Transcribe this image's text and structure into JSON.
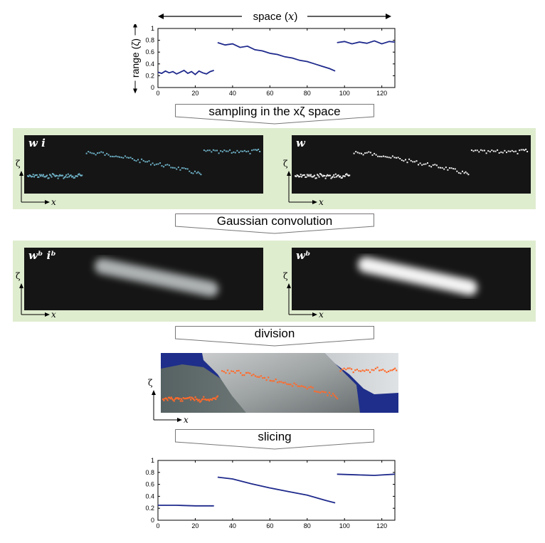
{
  "header": {
    "space_label": "space (",
    "space_var": "x",
    "space_close": ")"
  },
  "top_plot": {
    "ylabel": "range (ζ)",
    "xticks": [
      "0",
      "20",
      "40",
      "60",
      "80",
      "100",
      "120"
    ],
    "yticks": [
      "0",
      "0.2",
      "0.4",
      "0.6",
      "0.8",
      "1"
    ]
  },
  "steps": {
    "sampling": "sampling in the xζ space",
    "gaussian": "Gaussian convolution",
    "division": "division",
    "slicing": "slicing"
  },
  "panels": {
    "wi": "w i",
    "w": "w",
    "wbib": "wᵇ iᵇ",
    "wb": "wᵇ"
  },
  "axis_icon": {
    "y": "ζ",
    "x": "x"
  },
  "bottom_plot": {
    "xticks": [
      "0",
      "20",
      "40",
      "60",
      "80",
      "100",
      "120"
    ],
    "yticks": [
      "0",
      "0.2",
      "0.4",
      "0.6",
      "0.8",
      "1"
    ]
  },
  "colors": {
    "band": "#dfedcf",
    "line": "#1f2a8c",
    "orange": "#ff6a2a",
    "dark_blue": "#1e2e8a"
  },
  "chart_data": [
    {
      "type": "line",
      "series": [
        {
          "x": [
            0,
            2,
            4,
            6,
            8,
            10,
            12,
            14,
            16,
            18,
            20,
            22,
            24,
            26,
            28,
            30
          ],
          "values": [
            0.26,
            0.24,
            0.28,
            0.25,
            0.27,
            0.23,
            0.26,
            0.29,
            0.24,
            0.27,
            0.22,
            0.28,
            0.25,
            0.23,
            0.27,
            0.29
          ]
        },
        {
          "x": [
            32,
            36,
            40,
            44,
            48,
            52,
            56,
            60,
            64,
            68,
            72,
            76,
            80,
            84,
            88,
            92,
            95
          ],
          "values": [
            0.76,
            0.72,
            0.74,
            0.68,
            0.7,
            0.64,
            0.62,
            0.58,
            0.56,
            0.52,
            0.5,
            0.46,
            0.44,
            0.4,
            0.36,
            0.32,
            0.28
          ]
        },
        {
          "x": [
            96,
            100,
            104,
            108,
            112,
            116,
            120,
            124,
            127
          ],
          "values": [
            0.76,
            0.78,
            0.74,
            0.77,
            0.75,
            0.79,
            0.74,
            0.78,
            0.77
          ]
        }
      ],
      "xlim": [
        0,
        127
      ],
      "ylim": [
        0,
        1
      ]
    },
    {
      "type": "line",
      "series": [
        {
          "x": [
            0,
            10,
            20,
            30
          ],
          "values": [
            0.25,
            0.25,
            0.24,
            0.24
          ]
        },
        {
          "x": [
            32,
            40,
            50,
            60,
            70,
            80,
            90,
            95
          ],
          "values": [
            0.72,
            0.69,
            0.61,
            0.54,
            0.48,
            0.42,
            0.33,
            0.29
          ]
        },
        {
          "x": [
            96,
            106,
            116,
            127
          ],
          "values": [
            0.77,
            0.76,
            0.75,
            0.77
          ]
        }
      ],
      "xlim": [
        0,
        127
      ],
      "ylim": [
        0,
        1
      ]
    }
  ]
}
